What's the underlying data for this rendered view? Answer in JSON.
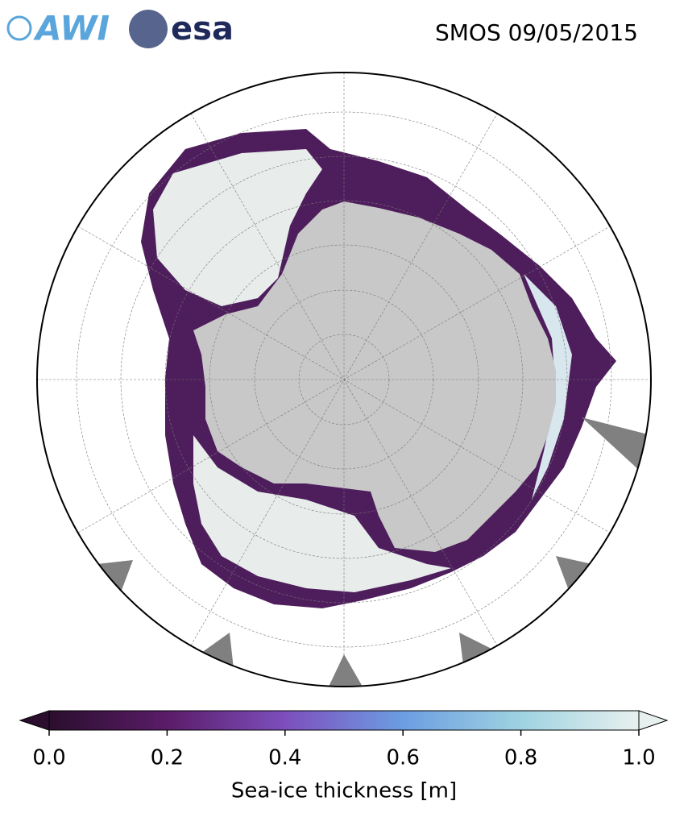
{
  "logos": [
    "AWI",
    "esa"
  ],
  "title": "SMOS 09/05/2015",
  "chart_data": {
    "type": "colorbar",
    "label": "Sea-ice thickness [m]",
    "xlim": [
      0,
      1
    ],
    "xticks": [
      {
        "value": 0,
        "label": "0.0"
      },
      {
        "value": 0.2,
        "label": "0.2"
      },
      {
        "value": 0.4,
        "label": "0.4"
      },
      {
        "value": 0.6,
        "label": "0.6"
      },
      {
        "value": 0.8,
        "label": "0.8"
      },
      {
        "value": 1,
        "label": "1.0"
      }
    ],
    "colors": [
      "#2b0e2d",
      "#5a1c68",
      "#7d4fbd",
      "#6c9de2",
      "#9fd3e1",
      "#e8f0ef"
    ]
  }
}
